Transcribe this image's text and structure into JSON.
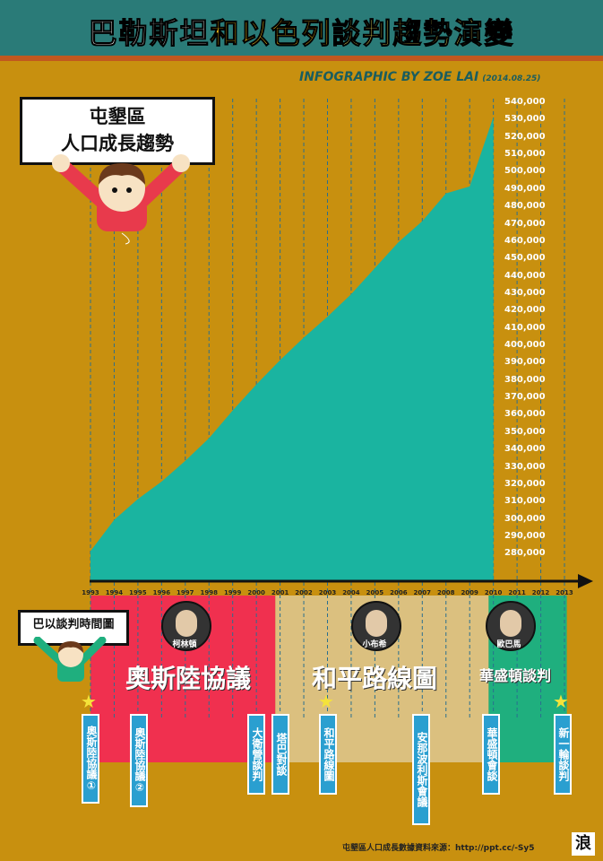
{
  "header": {
    "title_part1": "巴勒斯坦",
    "title_part2": "和以色列",
    "title_part3": "談判趨勢演變",
    "title_colors": [
      "#ffffff",
      "#f6c21e",
      "#f6e65a"
    ],
    "byline": "INFOGRAPHIC BY ZOE LAI",
    "date": "(2014.08.25)"
  },
  "sign_chart": {
    "line1": "屯墾區",
    "line2": "人口成長趨勢"
  },
  "sign_timeline": {
    "label": "巴以談判時間圖"
  },
  "chart_data": {
    "type": "area",
    "x": [
      1993,
      1994,
      1995,
      1996,
      1997,
      1998,
      1999,
      2000,
      2001,
      2002,
      2003,
      2004,
      2005,
      2006,
      2007,
      2008,
      2009,
      2010
    ],
    "values": [
      282000,
      300000,
      312000,
      322000,
      334000,
      347000,
      363000,
      378000,
      392000,
      405000,
      417000,
      430000,
      445000,
      460000,
      472000,
      488000,
      492000,
      532000
    ],
    "x_tick_labels": [
      "1993",
      "1994",
      "1995",
      "1996",
      "1997",
      "1998",
      "1999",
      "2000",
      "2001",
      "2002",
      "2003",
      "2004",
      "2005",
      "2006",
      "2007",
      "2008",
      "2009",
      "2010",
      "2011",
      "2012",
      "2013"
    ],
    "y_tick_labels": [
      "540,000",
      "530,000",
      "520,000",
      "510,000",
      "500,000",
      "490,000",
      "480,000",
      "470,000",
      "460,000",
      "450,000",
      "440,000",
      "430,000",
      "420,000",
      "410,000",
      "400,000",
      "390,000",
      "380,000",
      "370,000",
      "360,000",
      "350,000",
      "340,000",
      "330,000",
      "320,000",
      "310,000",
      "300,000",
      "290,000",
      "280,000"
    ],
    "ylim": [
      275000,
      540000
    ],
    "xlim": [
      1993,
      2013
    ],
    "fill_color": "#1ab4a0",
    "grid": "vertical dashed lines"
  },
  "bands": [
    {
      "label": "奧斯陸協議",
      "color": "#f0304f",
      "leader": "柯林頓"
    },
    {
      "label": "和平路線圖",
      "color": "#dbc07f",
      "leader": "小布希"
    },
    {
      "label": "華盛頓談判",
      "color": "#1faf7e",
      "leader": "歐巴馬"
    }
  ],
  "events": [
    {
      "text": "奧斯陸協議①"
    },
    {
      "text": "奧斯陸協議②"
    },
    {
      "text": "大衛營談判"
    },
    {
      "text": "塔巴對談"
    },
    {
      "text": "和平路線圖"
    },
    {
      "text": "安那波利斯會議"
    },
    {
      "text": "華盛頓會談"
    },
    {
      "text": "新一輪談判"
    }
  ],
  "footer": {
    "source": "屯墾區人口成長數據資料來源：http://ppt.cc/-Sy5",
    "logo": "浪"
  }
}
